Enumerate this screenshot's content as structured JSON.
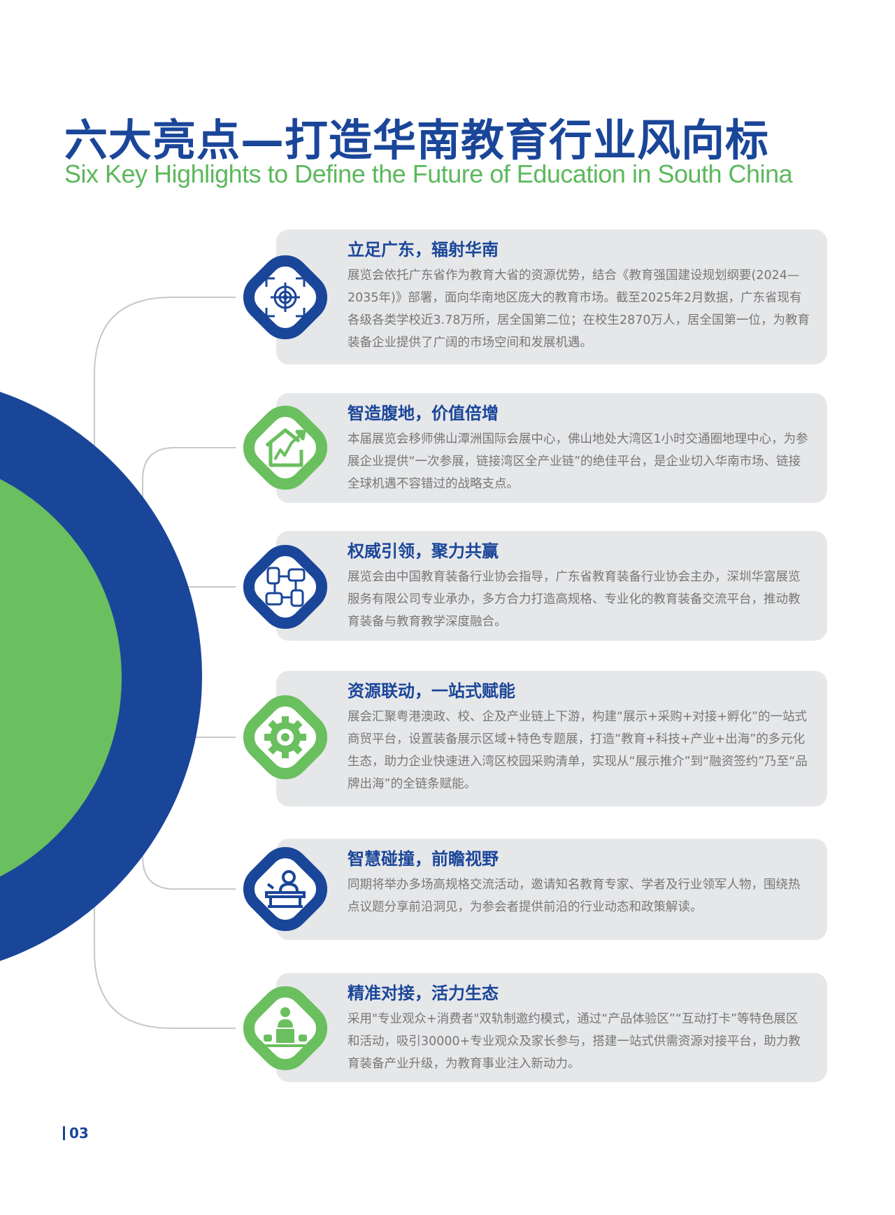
{
  "header": {
    "title": "六大亮点—打造华南教育行业风向标",
    "subtitle": "Six Key Highlights to Define the Future of Education in South China"
  },
  "colors": {
    "primary_blue": "#1a4699",
    "accent_green": "#6abf5e",
    "card_bg": "#e6e7e9"
  },
  "highlights": [
    {
      "icon": "target-icon",
      "title": "立足广东，辐射华南",
      "body": "展览会依托广东省作为教育大省的资源优势，结合《教育强国建设规划纲要(2024—2035年)》部署，面向华南地区庞大的教育市场。截至2025年2月数据，广东省现有各级各类学校近3.78万所，居全国第二位；在校生2870万人，居全国第一位，为教育装备企业提供了广阔的市场空间和发展机遇。"
    },
    {
      "icon": "house-growth-icon",
      "title": "智造腹地，价值倍增",
      "body": "本届展览会移师佛山潭洲国际会展中心，佛山地处大湾区1小时交通圈地理中心，为参展企业提供“一次参展，链接湾区全产业链”的绝佳平台，是企业切入华南市场、链接全球机遇不容错过的战略支点。"
    },
    {
      "icon": "teamwork-hands-icon",
      "title": "权威引领，聚力共赢",
      "body": "展览会由中国教育装备行业协会指导，广东省教育装备行业协会主办，深圳华富展览服务有限公司专业承办，多方合力打造高规格、专业化的教育装备交流平台，推动教育装备与教育教学深度融合。"
    },
    {
      "icon": "gear-icon",
      "title": "资源联动，一站式赋能",
      "body": "展会汇聚粤港澳政、校、企及产业链上下游，构建“展示+采购+对接+孵化”的一站式商贸平台，设置装备展示区域+特色专题展，打造“教育+科技+产业+出海”的多元化生态，助力企业快速进入湾区校园采购清单，实现从“展示推介”到“融资签约”乃至“品牌出海”的全链条赋能。"
    },
    {
      "icon": "speaker-podium-icon",
      "title": "智慧碰撞，前瞻视野",
      "body": "同期将举办多场高规格交流活动，邀请知名教育专家、学者及行业领军人物，围绕热点议题分享前沿洞见，为参会者提供前沿的行业动态和政策解读。"
    },
    {
      "icon": "presenter-icon",
      "title": "精准对接，活力生态",
      "body": "采用\"专业观众+消费者\"双轨制邀约模式，通过“产品体验区”“互动打卡”等特色展区和活动，吸引30000+专业观众及家长参与，搭建一站式供需资源对接平台，助力教育装备产业升级，为教育事业注入新动力。"
    }
  ],
  "footer": {
    "page_number": "03"
  }
}
